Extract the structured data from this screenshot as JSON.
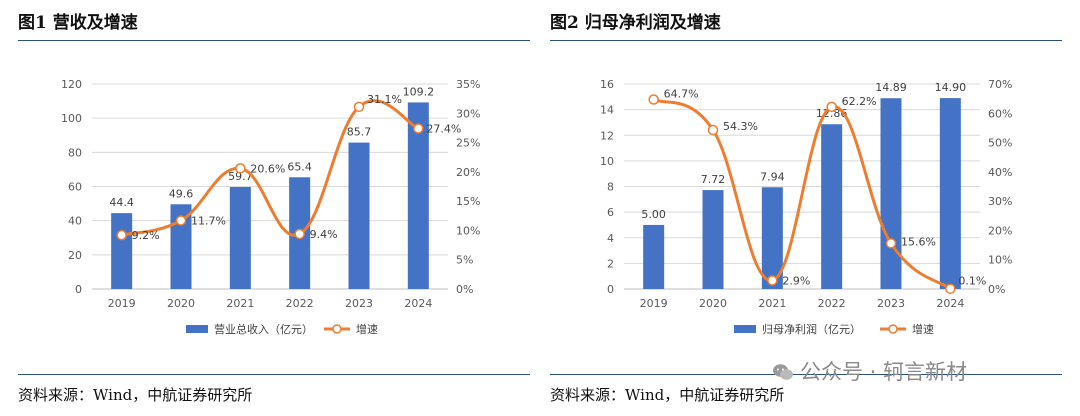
{
  "colors": {
    "bar": "#4472c4",
    "line": "#ed7d31",
    "rule": "#2c4f7c",
    "grid": "#d9d9d9",
    "axis_text": "#595959"
  },
  "charts": [
    {
      "title": "图1  营收及增速",
      "source": "资料来源：Wind，中航证券研究所",
      "chart_data": {
        "type": "bar",
        "categories": [
          "2019",
          "2020",
          "2021",
          "2022",
          "2023",
          "2024"
        ],
        "series": [
          {
            "name": "营业总收入（亿元）",
            "type": "bar",
            "axis": "left",
            "values": [
              44.4,
              49.6,
              59.7,
              65.4,
              85.7,
              109.2
            ],
            "labels": [
              "44.4",
              "49.6",
              "59.7",
              "65.4",
              "85.7",
              "109.2"
            ]
          },
          {
            "name": "增速",
            "type": "line",
            "axis": "right",
            "values": [
              9.2,
              11.7,
              20.6,
              9.4,
              31.1,
              27.4
            ],
            "labels": [
              "9.2%",
              "11.7%",
              "20.6%",
              "9.4%",
              "31.1%",
              "27.4%"
            ]
          }
        ],
        "ylim_left": [
          0,
          120
        ],
        "yticks_left": [
          "0",
          "20",
          "40",
          "60",
          "80",
          "100",
          "120"
        ],
        "ylim_right": [
          0,
          35
        ],
        "yticks_right": [
          "0%",
          "5%",
          "10%",
          "15%",
          "20%",
          "25%",
          "30%",
          "35%"
        ],
        "grid": true,
        "legend": "bottom"
      }
    },
    {
      "title": "图2  归母净利润及增速",
      "source": "资料来源：Wind，中航证券研究所",
      "chart_data": {
        "type": "bar",
        "categories": [
          "2019",
          "2020",
          "2021",
          "2022",
          "2023",
          "2024"
        ],
        "series": [
          {
            "name": "归母净利润（亿元）",
            "type": "bar",
            "axis": "left",
            "values": [
              5.0,
              7.72,
              7.94,
              12.86,
              14.89,
              14.9
            ],
            "labels": [
              "5.00",
              "7.72",
              "7.94",
              "12.86",
              "14.89",
              "14.90"
            ]
          },
          {
            "name": "增速",
            "type": "line",
            "axis": "right",
            "values": [
              64.7,
              54.3,
              2.9,
              62.2,
              15.6,
              0.1
            ],
            "labels": [
              "64.7%",
              "54.3%",
              "2.9%",
              "62.2%",
              "15.6%",
              "0.1%"
            ]
          }
        ],
        "ylim_left": [
          0,
          16
        ],
        "yticks_left": [
          "0",
          "2",
          "4",
          "6",
          "8",
          "10",
          "12",
          "14",
          "16"
        ],
        "ylim_right": [
          0,
          70
        ],
        "yticks_right": [
          "0%",
          "10%",
          "20%",
          "30%",
          "40%",
          "50%",
          "60%",
          "70%"
        ],
        "grid": true,
        "legend": "bottom"
      }
    }
  ],
  "watermark": {
    "text": "公众号 · 轲言新材",
    "icon": "wechat-icon"
  }
}
